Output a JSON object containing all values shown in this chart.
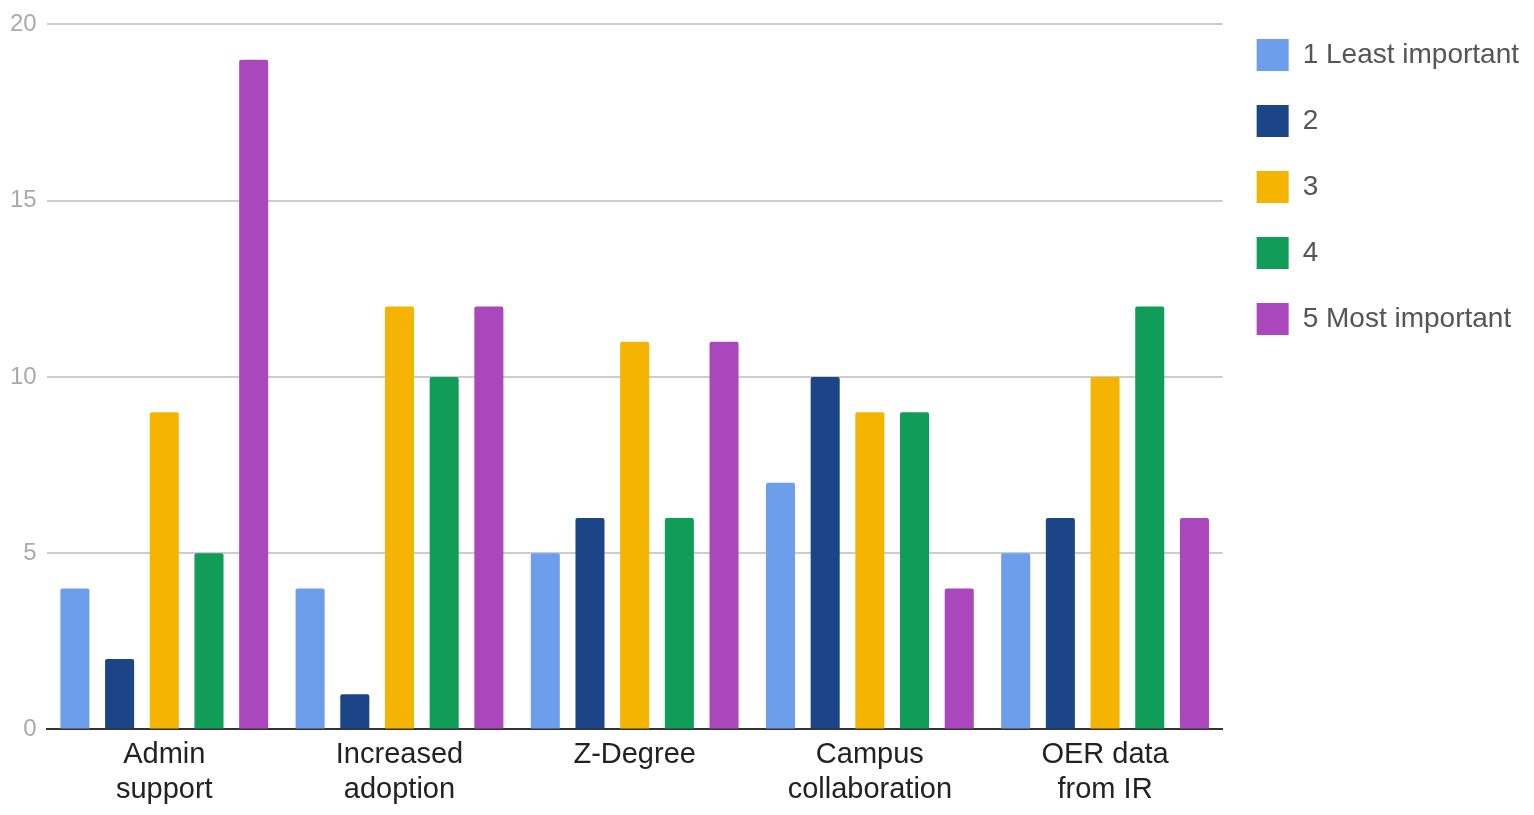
{
  "chart_data": {
    "type": "bar",
    "categories": [
      "Admin support",
      "Increased adoption",
      "Z-Degree",
      "Campus collaboration",
      "OER data from IR"
    ],
    "series": [
      {
        "name": "1 Least important",
        "color": "#6d9eeb",
        "values": [
          4,
          4,
          5,
          7,
          5
        ]
      },
      {
        "name": "2",
        "color": "#1c4587",
        "values": [
          2,
          1,
          6,
          10,
          6
        ]
      },
      {
        "name": "3",
        "color": "#f4b400",
        "values": [
          9,
          12,
          11,
          9,
          10
        ]
      },
      {
        "name": "4",
        "color": "#0f9d58",
        "values": [
          5,
          10,
          6,
          9,
          12
        ]
      },
      {
        "name": "5 Most important",
        "color": "#ab47bc",
        "values": [
          19,
          12,
          11,
          4,
          6
        ]
      }
    ],
    "ylim": [
      0,
      20
    ],
    "yticks": [
      0,
      5,
      10,
      15,
      20
    ],
    "grid": "y",
    "legend": "top right"
  }
}
